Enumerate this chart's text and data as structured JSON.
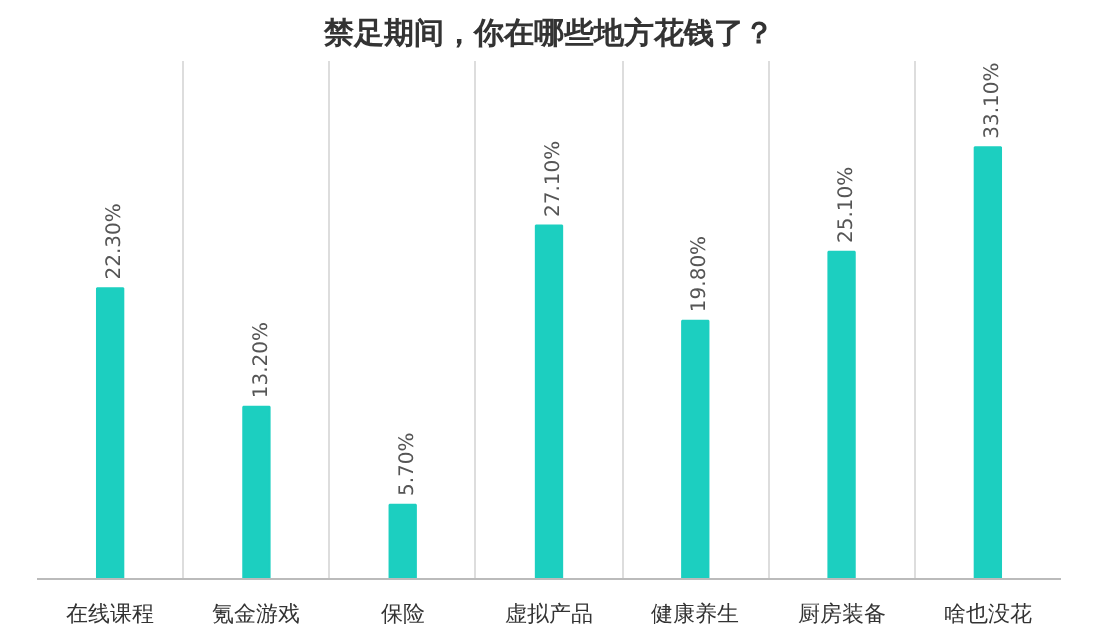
{
  "chart_data": {
    "type": "bar",
    "title": "禁足期间，你在哪些地方花钱了？",
    "categories": [
      "在线课程",
      "氪金游戏",
      "保险",
      "虚拟产品",
      "健康养生",
      "厨房装备",
      "啥也没花"
    ],
    "values": [
      22.3,
      13.2,
      5.7,
      27.1,
      19.8,
      25.1,
      33.1
    ],
    "value_labels": [
      "22.30%",
      "13.20%",
      "5.70%",
      "27.10%",
      "19.80%",
      "25.10%",
      "33.10%"
    ],
    "color": "#1ccfc0",
    "tick_labels": "x",
    "grid": "x"
  }
}
